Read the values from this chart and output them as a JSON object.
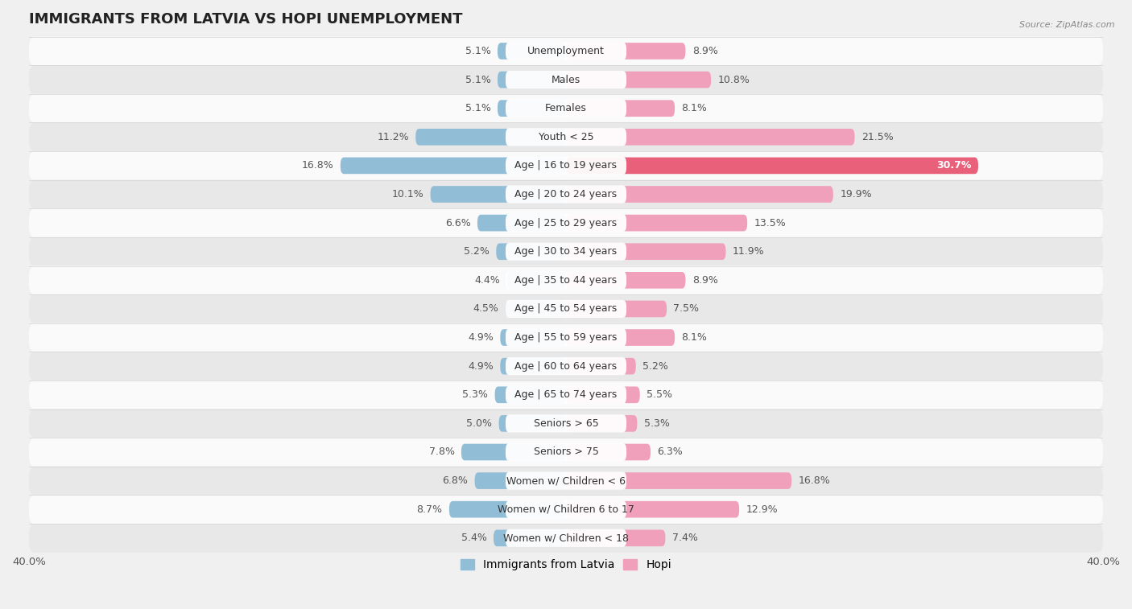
{
  "title": "IMMIGRANTS FROM LATVIA VS HOPI UNEMPLOYMENT",
  "source": "Source: ZipAtlas.com",
  "categories": [
    "Unemployment",
    "Males",
    "Females",
    "Youth < 25",
    "Age | 16 to 19 years",
    "Age | 20 to 24 years",
    "Age | 25 to 29 years",
    "Age | 30 to 34 years",
    "Age | 35 to 44 years",
    "Age | 45 to 54 years",
    "Age | 55 to 59 years",
    "Age | 60 to 64 years",
    "Age | 65 to 74 years",
    "Seniors > 65",
    "Seniors > 75",
    "Women w/ Children < 6",
    "Women w/ Children 6 to 17",
    "Women w/ Children < 18"
  ],
  "latvia_values": [
    5.1,
    5.1,
    5.1,
    11.2,
    16.8,
    10.1,
    6.6,
    5.2,
    4.4,
    4.5,
    4.9,
    4.9,
    5.3,
    5.0,
    7.8,
    6.8,
    8.7,
    5.4
  ],
  "hopi_values": [
    8.9,
    10.8,
    8.1,
    21.5,
    30.7,
    19.9,
    13.5,
    11.9,
    8.9,
    7.5,
    8.1,
    5.2,
    5.5,
    5.3,
    6.3,
    16.8,
    12.9,
    7.4
  ],
  "latvia_color": "#92bdd6",
  "hopi_color": "#f0a0bb",
  "hopi_highlight_color": "#e8607a",
  "bg_color": "#f0f0f0",
  "row_bg_light": "#fafafa",
  "row_bg_dark": "#e8e8e8",
  "axis_max": 40.0,
  "bar_height": 0.58,
  "title_fontsize": 13,
  "value_fontsize": 9,
  "label_fontsize": 9,
  "tick_fontsize": 9.5,
  "legend_fontsize": 10
}
